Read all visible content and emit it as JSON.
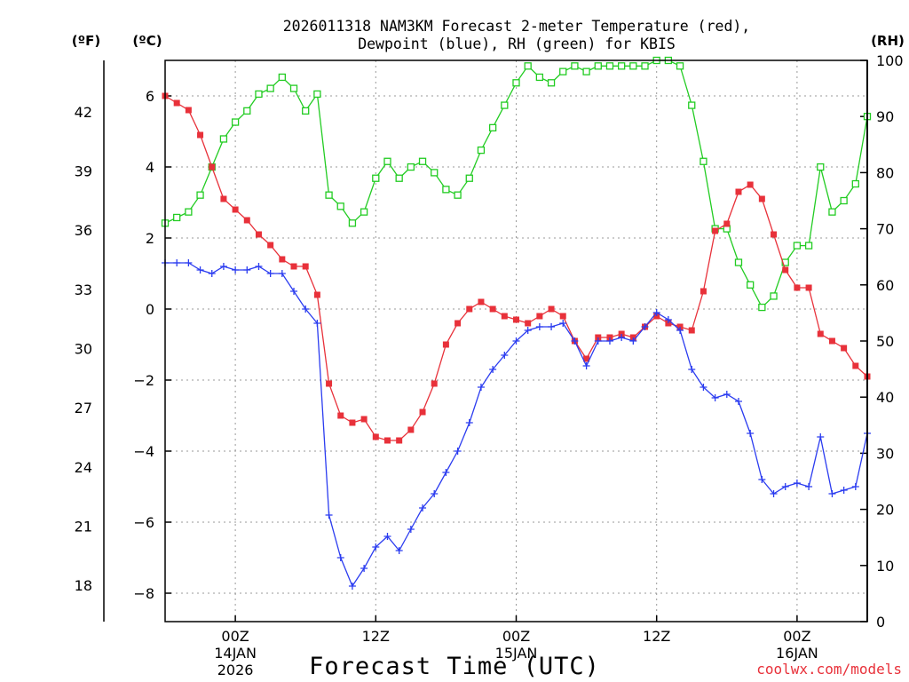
{
  "chart_data": {
    "type": "line",
    "title": "2026011318 NAM3KM Forecast 2-meter Temperature (red),",
    "subtitle": "Dewpoint (blue), RH (green) for KBIS",
    "xlabel": "Forecast Time (UTC)",
    "credit": "coolwx.com/models",
    "units": {
      "fahrenheit": "(ºF)",
      "celsius": "(ºC)",
      "rh": "(RH)"
    },
    "x_unit": "forecast hour (0 = 18Z 13JAN 2026)",
    "xlim": [
      0,
      60
    ],
    "ylim_celsius": [
      -8.8,
      7.0
    ],
    "ylim_rh": [
      0,
      100
    ],
    "celsius_ticks": [
      6,
      4,
      2,
      0,
      -2,
      -4,
      -6,
      -8
    ],
    "celsius_tick_labels": [
      "6",
      "4",
      "2",
      "0",
      "−2",
      "−4",
      "−6",
      "−8"
    ],
    "fahrenheit_ticks": [
      "42",
      "39",
      "36",
      "33",
      "30",
      "27",
      "24",
      "21",
      "18"
    ],
    "rh_ticks": [
      "100",
      "90",
      "80",
      "70",
      "60",
      "50",
      "40",
      "30",
      "20",
      "10",
      "0"
    ],
    "x_ticks": [
      {
        "hour": 6,
        "label": "00Z",
        "date": "14JAN",
        "year": "2026"
      },
      {
        "hour": 18,
        "label": "12Z",
        "date": "",
        "year": ""
      },
      {
        "hour": 30,
        "label": "00Z",
        "date": "15JAN",
        "year": ""
      },
      {
        "hour": 42,
        "label": "12Z",
        "date": "",
        "year": ""
      },
      {
        "hour": 54,
        "label": "00Z",
        "date": "16JAN",
        "year": ""
      }
    ],
    "series": [
      {
        "name": "Temperature (C)",
        "axis": "celsius",
        "color": "#e8313a",
        "marker": "filled-square",
        "values": [
          6.0,
          5.8,
          5.6,
          4.9,
          4.0,
          3.1,
          2.8,
          2.5,
          2.1,
          1.8,
          1.4,
          1.2,
          1.2,
          0.4,
          -2.1,
          -3.0,
          -3.2,
          -3.1,
          -3.6,
          -3.7,
          -3.7,
          -3.4,
          -2.9,
          -2.1,
          -1.0,
          -0.4,
          0.0,
          0.2,
          0.0,
          -0.2,
          -0.3,
          -0.4,
          -0.2,
          0.0,
          -0.2,
          -0.9,
          -1.4,
          -0.8,
          -0.8,
          -0.7,
          -0.8,
          -0.5,
          -0.2,
          -0.4,
          -0.5,
          -0.6,
          0.5,
          2.2,
          2.4,
          3.3,
          3.5,
          3.1,
          2.1,
          1.1,
          0.6,
          0.6,
          -0.7,
          -0.9,
          -1.1,
          -1.6,
          -1.9
        ]
      },
      {
        "name": "Dewpoint (C)",
        "axis": "celsius",
        "color": "#2b3cf0",
        "marker": "plus",
        "values": [
          1.3,
          1.3,
          1.3,
          1.1,
          1.0,
          1.2,
          1.1,
          1.1,
          1.2,
          1.0,
          1.0,
          0.5,
          0.0,
          -0.4,
          -5.8,
          -7.0,
          -7.8,
          -7.3,
          -6.7,
          -6.4,
          -6.8,
          -6.2,
          -5.6,
          -5.2,
          -4.6,
          -4.0,
          -3.2,
          -2.2,
          -1.7,
          -1.3,
          -0.9,
          -0.6,
          -0.5,
          -0.5,
          -0.4,
          -0.9,
          -1.6,
          -0.9,
          -0.9,
          -0.8,
          -0.9,
          -0.5,
          -0.1,
          -0.3,
          -0.6,
          -1.7,
          -2.2,
          -2.5,
          -2.4,
          -2.6,
          -3.5,
          -4.8,
          -5.2,
          -5.0,
          -4.9,
          -5.0,
          -3.6,
          -5.2,
          -5.1,
          -5.0,
          -3.5
        ]
      },
      {
        "name": "RH (%)",
        "axis": "rh",
        "color": "#22cc22",
        "marker": "open-square",
        "values": [
          71,
          72,
          73,
          76,
          81,
          86,
          89,
          91,
          94,
          95,
          97,
          95,
          91,
          94,
          76,
          74,
          71,
          73,
          79,
          82,
          79,
          81,
          82,
          80,
          77,
          76,
          79,
          84,
          88,
          92,
          96,
          99,
          97,
          96,
          98,
          99,
          98,
          99,
          99,
          99,
          99,
          99,
          100,
          100,
          99,
          92,
          82,
          70,
          70,
          64,
          60,
          56,
          58,
          64,
          67,
          67,
          81,
          73,
          75,
          78,
          90
        ]
      }
    ]
  }
}
